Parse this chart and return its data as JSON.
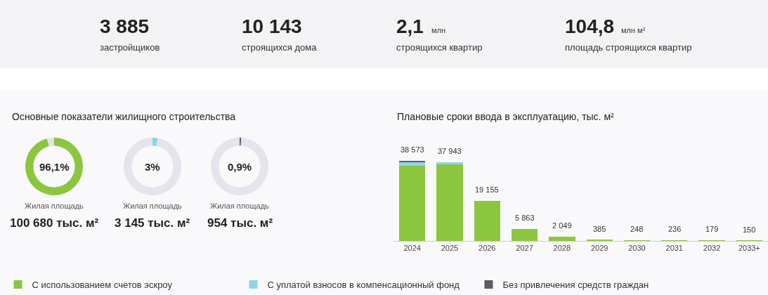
{
  "chart_data": [
    {
      "type": "other",
      "annotations": [
        "3 885",
        "застройщиков",
        "10 143",
        "строящихся дома",
        "2,1",
        "млн",
        "строящихся квартир",
        "104,8",
        "млн м²",
        "площадь строящихся квартир"
      ]
    },
    {
      "type": "donut",
      "title": "Основные показатели жилищного строительства",
      "categories": [
        null,
        null
      ],
      "values": [
        96.1,
        3.9
      ],
      "colors": [
        "#8cc63f",
        "#e4e4ec"
      ],
      "annotations": [
        "96,1%",
        "Жилая площадь",
        "100 680 тыс. м²"
      ]
    },
    {
      "type": "donut",
      "categories": [
        null,
        null
      ],
      "values": [
        3,
        97
      ],
      "colors": [
        "#8fd4e6",
        "#e4e4ec"
      ],
      "annotations": [
        "3%",
        "Жилая площадь",
        "3 145 тыс. м²"
      ]
    },
    {
      "type": "donut",
      "categories": [
        null,
        null
      ],
      "values": [
        0.9,
        99.1
      ],
      "colors": [
        "#5b5b6b",
        "#e4e4ec"
      ],
      "annotations": [
        "0,9%",
        "Жилая площадь",
        "954 тыс. м²"
      ]
    },
    {
      "type": "bar",
      "stacked": true,
      "title": "Плановые сроки ввода в эксплуатацию, тыс. м²",
      "legend": "bottom",
      "categories": [
        "2024",
        "2025",
        "2026",
        "2027",
        "2028",
        "2029",
        "2030",
        "2031",
        "2032",
        "2033+"
      ],
      "series": [
        {
          "name": "С использованием счетов эскроу",
          "color": "#8cc63f",
          "values": [
            36050,
            36740,
            19155,
            5863,
            2049,
            385,
            248,
            236,
            179,
            150
          ],
          "value_labels": [
            null,
            null,
            "19 155",
            "5 863",
            "2 049",
            "385",
            "248",
            "236",
            "179",
            "150"
          ]
        },
        {
          "name": "С уплатой взносов в компенсационный фонд",
          "color": "#8fd4e6",
          "values": [
            1980,
            1203,
            null,
            null,
            null,
            null,
            null,
            null,
            null,
            null
          ]
        },
        {
          "name": "Без привлечения средств граждан",
          "color": "#5b5b6b",
          "values": [
            543,
            null,
            null,
            null,
            null,
            null,
            null,
            null,
            null,
            null
          ]
        }
      ],
      "totals": [
        "38 573",
        "37 943",
        null,
        null,
        null,
        null,
        null,
        null,
        null,
        null
      ]
    }
  ]
}
